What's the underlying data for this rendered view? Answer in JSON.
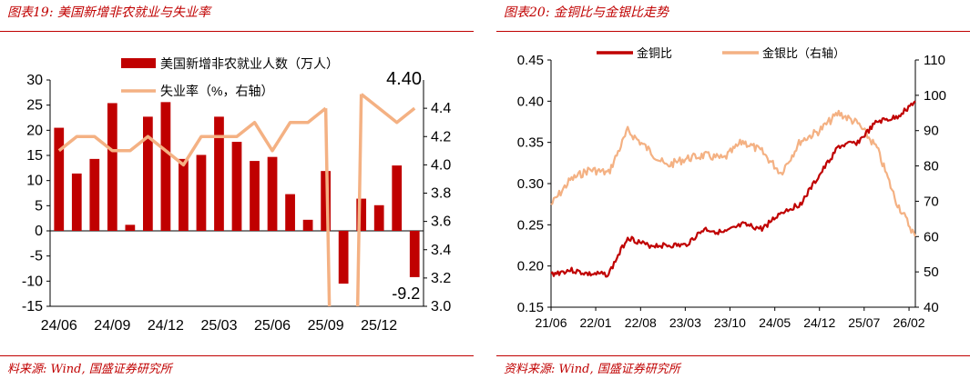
{
  "panels": [
    {
      "title": "图表19:  美国新增非农就业与失业率",
      "source": "料来源:  Wind, 国盛证券研究所"
    },
    {
      "title": "图表20:  金铜比与金银比走势",
      "source": "资料来源:  Wind, 国盛证券研究所"
    }
  ],
  "chart_data": [
    {
      "type": "bar",
      "categories": [
        "24/06",
        "24/07",
        "24/08",
        "24/09",
        "24/10",
        "24/11",
        "24/12",
        "25/01",
        "25/02",
        "25/03",
        "25/04",
        "25/05",
        "25/06",
        "25/07",
        "25/08",
        "25/09",
        "25/10",
        "25/11",
        "25/12",
        "26/01",
        "26/02"
      ],
      "x_tick_labels": [
        "24/06",
        "24/09",
        "24/12",
        "25/03",
        "25/06",
        "25/09",
        "25/12"
      ],
      "series": [
        {
          "name": "美国新增非农就业人数（万人）",
          "type": "bar",
          "axis": "left",
          "values": [
            20.5,
            11.4,
            14.3,
            25.4,
            1.2,
            22.7,
            25.6,
            14.3,
            15.1,
            22.7,
            17.7,
            13.9,
            14.7,
            7.3,
            2.2,
            11.9,
            -10.5,
            6.4,
            5.1,
            13.0,
            -9.2
          ]
        },
        {
          "name": "失业率（%，右轴）",
          "type": "line",
          "axis": "right",
          "values": [
            4.1,
            4.2,
            4.2,
            4.1,
            4.1,
            4.2,
            4.1,
            4.0,
            4.2,
            4.2,
            4.2,
            4.3,
            4.1,
            4.3,
            4.3,
            4.4,
            null,
            4.5,
            4.4,
            4.3,
            4.4
          ]
        }
      ],
      "ylim_left": [
        -15,
        30
      ],
      "yticks_left": [
        -15,
        -10,
        -5,
        0,
        5,
        10,
        15,
        20,
        25,
        30
      ],
      "ylim_right": [
        3.0,
        4.6
      ],
      "yticks_right": [
        3.0,
        3.2,
        3.4,
        3.6,
        3.8,
        4.0,
        4.2,
        4.4
      ],
      "annotations": [
        "4.40",
        "-9.2"
      ],
      "legend": "top-left",
      "grid": false,
      "colors": {
        "bar": "#c00000",
        "line": "#f4b183"
      }
    },
    {
      "type": "line",
      "x_tick_labels": [
        "21/06",
        "22/01",
        "22/08",
        "23/03",
        "23/10",
        "24/05",
        "24/12",
        "25/07",
        "26/02"
      ],
      "x": [
        "21/06",
        "21/09",
        "21/12",
        "22/03",
        "22/06",
        "22/09",
        "22/12",
        "23/03",
        "23/06",
        "23/09",
        "23/12",
        "24/03",
        "24/06",
        "24/09",
        "24/12",
        "25/03",
        "25/06",
        "25/09",
        "25/12",
        "26/02"
      ],
      "series": [
        {
          "name": "金铜比",
          "axis": "left",
          "values": [
            0.19,
            0.195,
            0.19,
            0.19,
            0.235,
            0.225,
            0.225,
            0.225,
            0.245,
            0.24,
            0.25,
            0.245,
            0.265,
            0.275,
            0.31,
            0.345,
            0.35,
            0.375,
            0.38,
            0.4
          ]
        },
        {
          "name": "金银比（右轴）",
          "axis": "right",
          "values": [
            69,
            76,
            79,
            78,
            90,
            85,
            80,
            82,
            83,
            82,
            87,
            84,
            78,
            87,
            90,
            95,
            92,
            85,
            70,
            60
          ]
        }
      ],
      "ylim_left": [
        0.15,
        0.45
      ],
      "yticks_left": [
        0.15,
        0.2,
        0.25,
        0.3,
        0.35,
        0.4,
        0.45
      ],
      "ylim_right": [
        40,
        110
      ],
      "yticks_right": [
        40,
        50,
        60,
        70,
        80,
        90,
        100,
        110
      ],
      "legend": "top",
      "grid": false,
      "colors": {
        "gold_copper": "#c00000",
        "gold_silver": "#f4b183"
      }
    }
  ]
}
